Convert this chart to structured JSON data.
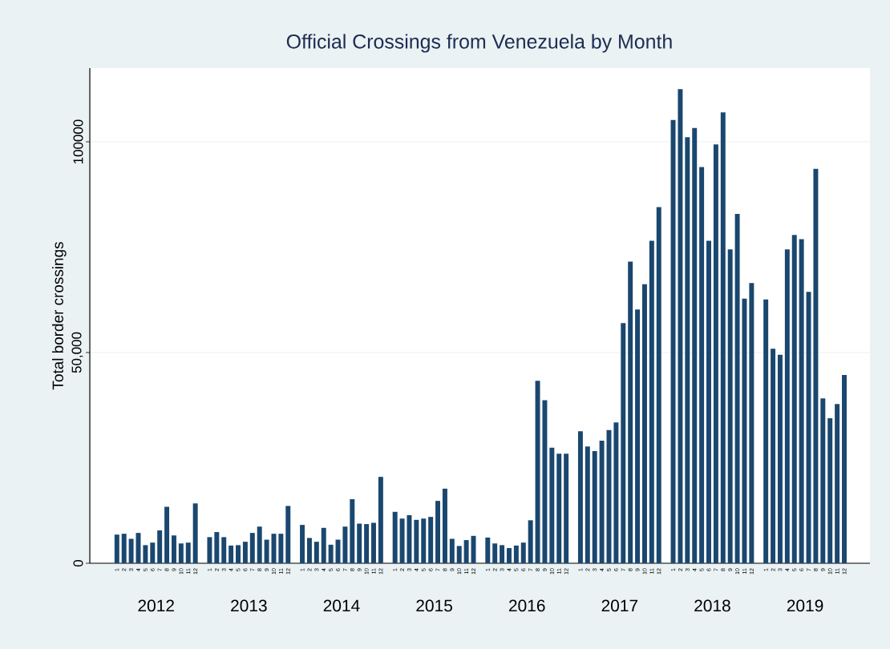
{
  "chart_data": {
    "type": "bar",
    "title": "Official Crossings from Venezuela by Month",
    "ylabel": "Total border crossings",
    "color": "#1a476f",
    "categories": [
      "1",
      "2",
      "3",
      "4",
      "5",
      "6",
      "7",
      "8",
      "9",
      "10",
      "11",
      "12",
      "1",
      "2",
      "3",
      "4",
      "5",
      "6",
      "7",
      "8",
      "9",
      "10",
      "11",
      "12",
      "1",
      "2",
      "3",
      "4",
      "5",
      "6",
      "7",
      "8",
      "9",
      "10",
      "11",
      "12",
      "1",
      "2",
      "3",
      "4",
      "5",
      "6",
      "7",
      "8",
      "9",
      "10",
      "11",
      "12",
      "1",
      "2",
      "3",
      "4",
      "5",
      "6",
      "7",
      "8",
      "9",
      "10",
      "11",
      "12",
      "1",
      "2",
      "3",
      "4",
      "5",
      "6",
      "7",
      "8",
      "9",
      "10",
      "11",
      "12",
      "1",
      "2",
      "3",
      "4",
      "5",
      "6",
      "7",
      "8",
      "9",
      "10",
      "11",
      "12",
      "1",
      "2",
      "3",
      "4",
      "5",
      "6",
      "7",
      "8",
      "9",
      "10",
      "11",
      "12"
    ],
    "values": [
      6800,
      7000,
      5800,
      7200,
      4300,
      4900,
      7800,
      13400,
      6600,
      4700,
      4900,
      14200,
      6200,
      7400,
      6200,
      4200,
      4300,
      5100,
      7200,
      8700,
      5600,
      7000,
      7000,
      13600,
      9100,
      6000,
      5100,
      8400,
      4400,
      5600,
      8700,
      15200,
      9400,
      9300,
      9600,
      20500,
      12200,
      10600,
      11400,
      10300,
      10600,
      11000,
      14800,
      17700,
      5800,
      4100,
      5500,
      6500,
      6100,
      4700,
      4300,
      3600,
      4200,
      4900,
      10200,
      43300,
      38700,
      27400,
      26000,
      26000,
      31300,
      27700,
      26600,
      29100,
      31600,
      33400,
      57000,
      71600,
      60200,
      66200,
      76500,
      84500,
      105200,
      112500,
      101100,
      103300,
      94000,
      76500,
      99400,
      107000,
      74500,
      82900,
      62800,
      66500,
      62600,
      50900,
      49500,
      74500,
      77900,
      76900,
      64400,
      93600,
      39100,
      34400,
      37800,
      44700
    ],
    "annotations": [
      "2012",
      "2013",
      "2014",
      "2015",
      "2016",
      "2017",
      "2018",
      "2019"
    ],
    "ylim": [
      0,
      117500
    ],
    "yticks": [
      0,
      {
        "value": 50000,
        "label": "50,000"
      },
      100000
    ],
    "grid": "y"
  }
}
